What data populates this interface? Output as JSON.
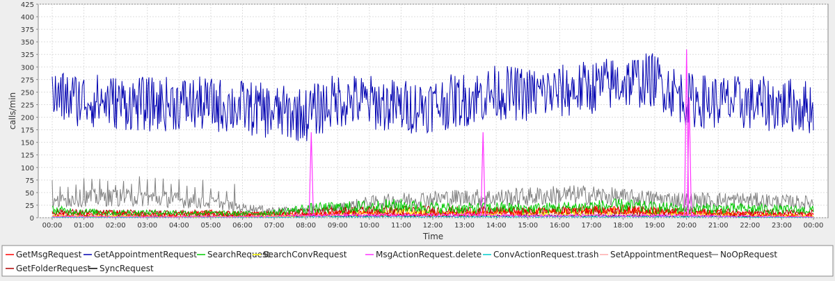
{
  "chart_data": {
    "type": "line",
    "title": "",
    "xlabel": "Time",
    "ylabel": "calls/min",
    "ylim": [
      0,
      425
    ],
    "y_ticks": [
      0,
      25,
      50,
      75,
      100,
      125,
      150,
      175,
      200,
      225,
      250,
      275,
      300,
      325,
      350,
      375,
      400,
      425
    ],
    "x_ticks": [
      "00:00",
      "01:00",
      "02:00",
      "03:00",
      "04:00",
      "05:00",
      "06:00",
      "07:00",
      "08:00",
      "09:00",
      "10:00",
      "11:00",
      "12:00",
      "13:00",
      "14:00",
      "15:00",
      "16:00",
      "17:00",
      "18:00",
      "19:00",
      "20:00",
      "21:00",
      "22:00",
      "23:00",
      "00:00"
    ],
    "grid": true,
    "legend_position": "bottom",
    "series": [
      {
        "name": "GetMsgRequest",
        "color": "#ff0000",
        "values": [
          8,
          6,
          9,
          5,
          7,
          10,
          6,
          8,
          7,
          9,
          8,
          6,
          7,
          9,
          10,
          12,
          14,
          15,
          16,
          14,
          12,
          10,
          8,
          6,
          7
        ]
      },
      {
        "name": "GetAppointmentRequest",
        "color": "#0000b0",
        "values": [
          240,
          235,
          230,
          225,
          228,
          225,
          220,
          210,
          205,
          235,
          230,
          220,
          225,
          235,
          250,
          245,
          250,
          260,
          270,
          275,
          235,
          230,
          228,
          225,
          220
        ]
      },
      {
        "name": "SearchRequest",
        "color": "#00cc00",
        "values": [
          15,
          12,
          10,
          10,
          10,
          9,
          8,
          10,
          18,
          20,
          22,
          24,
          20,
          18,
          20,
          18,
          20,
          22,
          24,
          20,
          18,
          18,
          18,
          16,
          15
        ]
      },
      {
        "name": "SearchConvRequest",
        "color": "#ffff00",
        "values": [
          3,
          3,
          3,
          2,
          2,
          2,
          2,
          3,
          5,
          8,
          10,
          12,
          10,
          8,
          10,
          9,
          10,
          12,
          12,
          10,
          8,
          8,
          6,
          5,
          4
        ]
      },
      {
        "name": "MsgActionRequest.delete",
        "color": "#ff33ff",
        "values": [
          2,
          2,
          2,
          2,
          2,
          2,
          2,
          3,
          4,
          5,
          5,
          5,
          5,
          6,
          4,
          4,
          4,
          4,
          4,
          4,
          5,
          3,
          3,
          2,
          2
        ]
      },
      {
        "name": "ConvActionRequest.trash",
        "color": "#00cccc",
        "values": [
          1,
          1,
          1,
          1,
          1,
          1,
          1,
          1,
          2,
          2,
          2,
          2,
          2,
          2,
          2,
          2,
          2,
          2,
          2,
          2,
          2,
          2,
          1,
          1,
          1
        ]
      },
      {
        "name": "SetAppointmentRequest",
        "color": "#ffaaaa",
        "values": [
          4,
          4,
          4,
          4,
          4,
          4,
          4,
          4,
          6,
          8,
          8,
          8,
          8,
          8,
          8,
          8,
          8,
          8,
          8,
          8,
          6,
          6,
          6,
          5,
          4
        ]
      },
      {
        "name": "NoOpRequest",
        "color": "#808080",
        "values": [
          30,
          40,
          40,
          40,
          35,
          30,
          20,
          15,
          15,
          20,
          30,
          35,
          38,
          40,
          40,
          42,
          45,
          45,
          40,
          38,
          35,
          35,
          35,
          32,
          30
        ]
      },
      {
        "name": "GetFolderRequest",
        "color": "#b00000",
        "values": [
          12,
          10,
          10,
          10,
          10,
          9,
          8,
          9,
          12,
          14,
          15,
          15,
          15,
          14,
          14,
          13,
          14,
          15,
          15,
          14,
          12,
          12,
          11,
          10,
          10
        ]
      },
      {
        "name": "SyncRequest",
        "color": "#000000",
        "values": [
          3,
          3,
          3,
          3,
          3,
          3,
          3,
          3,
          4,
          4,
          4,
          4,
          4,
          4,
          4,
          4,
          4,
          4,
          4,
          4,
          4,
          4,
          3,
          3,
          3
        ]
      }
    ],
    "spikes": [
      {
        "series": "MsgActionRequest.delete",
        "time": "08:10",
        "value": 170
      },
      {
        "series": "MsgActionRequest.delete",
        "time": "13:35",
        "value": 170
      },
      {
        "series": "MsgActionRequest.delete",
        "time": "20:00",
        "value": 335
      },
      {
        "series": "MsgActionRequest.delete",
        "time": "20:05",
        "value": 240
      }
    ]
  }
}
